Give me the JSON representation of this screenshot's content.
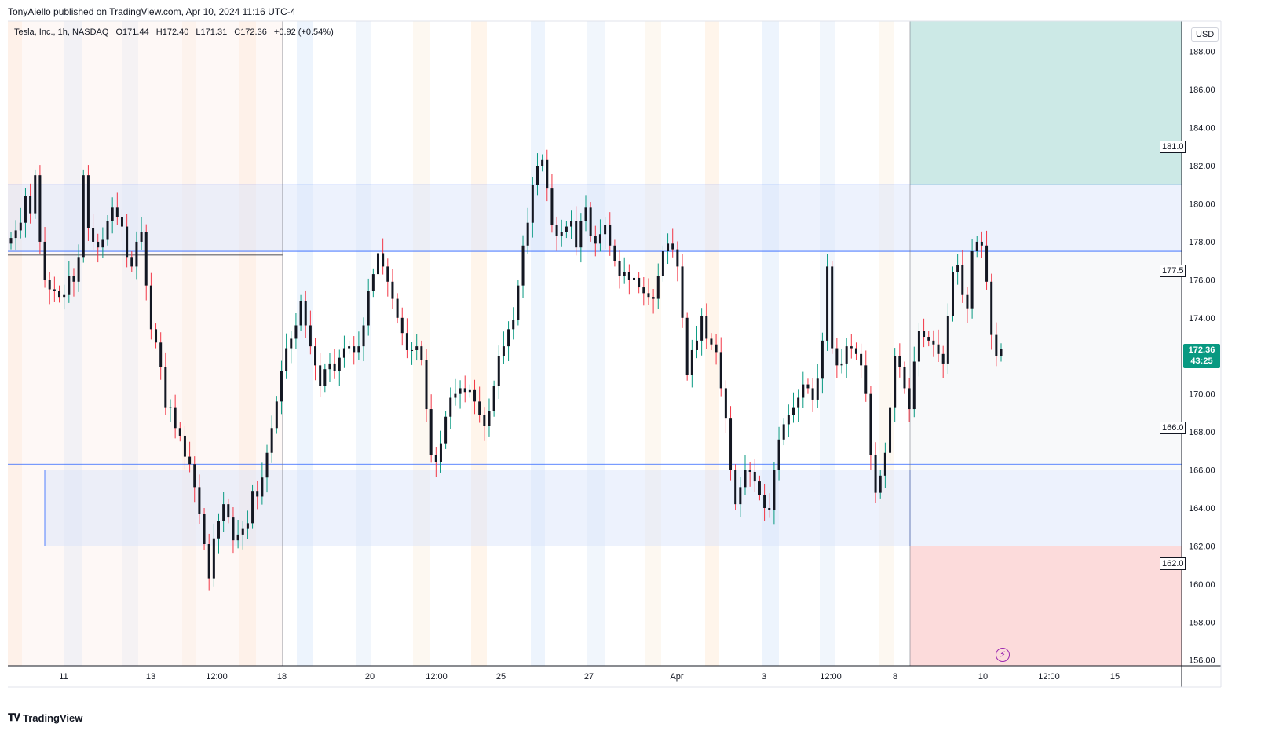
{
  "credit": "TonyAiello published on TradingView.com, Apr 10, 2024 11:16 UTC-4",
  "legend": {
    "symbol": "Tesla, Inc., 1h, NASDAQ",
    "open": "O171.44",
    "high": "H172.40",
    "low": "L171.31",
    "close": "C172.36",
    "change": "+0.92 (+0.54%)"
  },
  "currency": "USD",
  "last_price": "172.36",
  "countdown": "43:25",
  "footer": "TradingView",
  "zone_labels": {
    "target": "181.0",
    "entry": "177.5",
    "mid": "166.0",
    "stop": "162.0"
  },
  "colors": {
    "up": "#089981",
    "down": "#f23645",
    "wick_up": "#089981",
    "wick_down": "#f23645",
    "candle_body": "#131722",
    "zone_line": "#2962ff",
    "target_fill": "#cce9e6",
    "stop_fill": "#fcdbdb"
  },
  "chart_data": {
    "type": "candlestick",
    "title": "Tesla, Inc., 1h, NASDAQ",
    "xlabel": "",
    "ylabel": "USD",
    "ylim": [
      155.7,
      189.6
    ],
    "y_ticks": [
      "188.00",
      "186.00",
      "184.00",
      "182.00",
      "180.00",
      "178.00",
      "176.00",
      "174.00",
      "172.00",
      "170.00",
      "168.00",
      "166.00",
      "164.00",
      "162.00",
      "160.00",
      "158.00",
      "156.00"
    ],
    "x_ticks": [
      "11",
      "13",
      "12:00",
      "18",
      "20",
      "12:00",
      "25",
      "27",
      "Apr",
      "3",
      "12:00",
      "8",
      "10",
      "12:00",
      "15"
    ],
    "horizontal_lines": [
      181.0,
      177.5,
      166.3,
      166.0,
      162.0
    ],
    "zones": [
      {
        "name": "upper-resistance-zone",
        "from": 177.5,
        "to": 181.0
      },
      {
        "name": "lower-support-zone",
        "from": 162.0,
        "to": 166.0
      },
      {
        "name": "position-target",
        "from": 181.0,
        "to": 189.6
      },
      {
        "name": "position-stop",
        "from": 155.7,
        "to": 162.0
      }
    ],
    "closes": [
      178.2,
      178.6,
      179.0,
      180.4,
      179.5,
      181.5,
      178.0,
      176.0,
      175.5,
      175.4,
      175.1,
      175.2,
      176.2,
      175.9,
      177.2,
      181.5,
      178.7,
      178.0,
      177.7,
      178.1,
      179.1,
      179.8,
      179.3,
      178.8,
      177.2,
      176.7,
      178.0,
      178.5,
      175.7,
      173.4,
      172.7,
      171.4,
      169.3,
      169.3,
      168.2,
      167.8,
      166.7,
      166.3,
      165.1,
      163.7,
      162.1,
      160.3,
      162.4,
      163.3,
      164.2,
      163.5,
      162.3,
      162.6,
      162.9,
      163.2,
      164.9,
      164.6,
      165.6,
      166.9,
      168.2,
      169.6,
      171.2,
      172.4,
      172.9,
      173.6,
      174.9,
      173.6,
      172.5,
      171.5,
      170.4,
      171.3,
      171.6,
      171.2,
      171.9,
      172.4,
      172.5,
      172.2,
      172.5,
      173.6,
      175.4,
      176.3,
      177.4,
      176.7,
      175.9,
      175.0,
      174.0,
      173.2,
      172.3,
      172.3,
      172.5,
      171.8,
      169.2,
      166.8,
      166.4,
      167.4,
      168.8,
      169.8,
      170.0,
      170.3,
      170.1,
      170.2,
      169.6,
      168.9,
      168.3,
      169.1,
      170.4,
      172.0,
      172.5,
      173.4,
      173.9,
      175.7,
      177.8,
      179.0,
      181.0,
      182.0,
      182.3,
      180.8,
      178.9,
      178.3,
      178.5,
      178.8,
      179.1,
      177.7,
      179.1,
      179.8,
      178.3,
      177.9,
      178.4,
      178.9,
      177.8,
      177.0,
      176.2,
      176.4,
      176.0,
      176.1,
      175.6,
      175.3,
      175.1,
      175.0,
      176.2,
      177.5,
      177.9,
      177.6,
      176.7,
      174.0,
      171.0,
      172.3,
      172.8,
      174.1,
      172.9,
      172.6,
      172.2,
      170.3,
      168.7,
      166.0,
      164.2,
      165.1,
      166.0,
      165.9,
      165.4,
      164.7,
      164.0,
      163.9,
      166.0,
      167.6,
      168.4,
      168.9,
      169.3,
      169.8,
      170.5,
      170.3,
      169.7,
      170.8,
      172.8,
      176.7,
      172.4,
      171.5,
      171.6,
      172.5,
      172.4,
      172.1,
      171.5,
      170.0,
      166.8,
      164.8,
      165.7,
      166.9,
      169.3,
      172.0,
      171.4,
      170.3,
      169.2,
      171.7,
      173.3,
      173.0,
      172.8,
      172.6,
      172.1,
      171.6,
      174.1,
      176.4,
      176.8,
      175.2,
      174.5,
      177.5,
      178.0,
      177.8,
      175.9,
      173.1,
      172.0,
      172.36
    ],
    "ohlc_note": "Hourly OHLC values approximated from the chart; last candle O171.44 H172.40 L171.31 C172.36"
  }
}
